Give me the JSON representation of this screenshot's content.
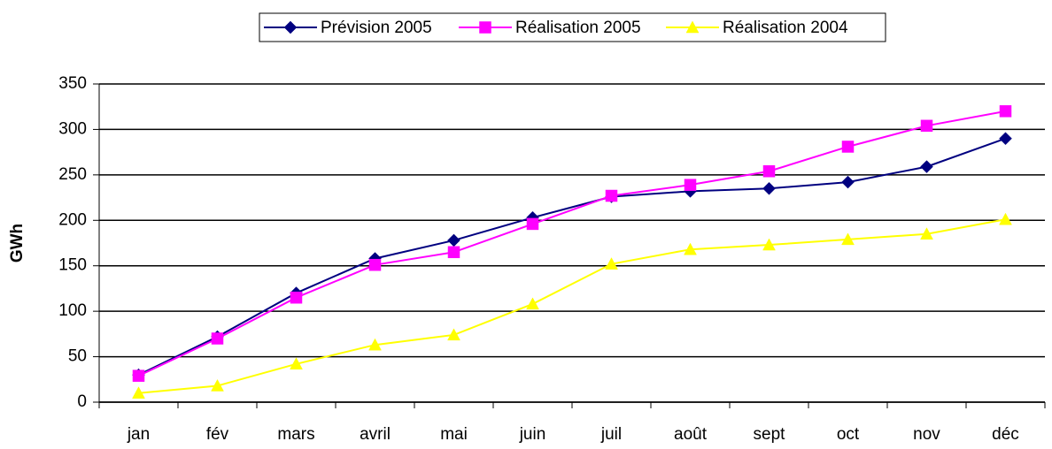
{
  "chart_data": {
    "type": "line",
    "ylabel": "GWh",
    "categories": [
      "jan",
      "fév",
      "mars",
      "avril",
      "mai",
      "juin",
      "juil",
      "août",
      "sept",
      "oct",
      "nov",
      "déc"
    ],
    "series": [
      {
        "name": "Prévision 2005",
        "color": "#000080",
        "marker": "diamond",
        "values": [
          30,
          72,
          120,
          158,
          178,
          203,
          226,
          232,
          235,
          242,
          259,
          290
        ]
      },
      {
        "name": "Réalisation 2005",
        "color": "#ff00ff",
        "marker": "square",
        "values": [
          29,
          70,
          115,
          151,
          165,
          196,
          227,
          239,
          254,
          281,
          304,
          320
        ]
      },
      {
        "name": "Réalisation 2004",
        "color": "#ffff00",
        "marker": "triangle",
        "values": [
          10,
          18,
          42,
          63,
          74,
          108,
          152,
          168,
          173,
          179,
          185,
          201
        ]
      }
    ],
    "ylim": [
      0,
      350
    ],
    "yticks": [
      0,
      50,
      100,
      150,
      200,
      250,
      300,
      350
    ],
    "grid": true,
    "legend": "top"
  }
}
